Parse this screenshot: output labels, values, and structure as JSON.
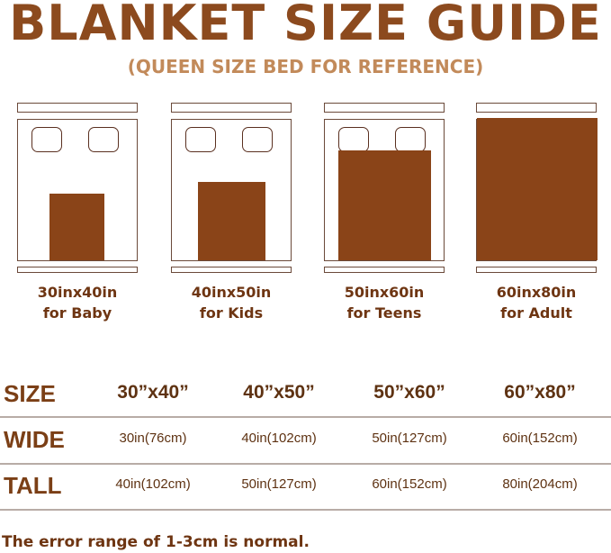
{
  "title": "BLANKET SIZE GUIDE",
  "subtitle": "(QUEEN SIZE BED FOR REFERENCE)",
  "colors": {
    "blanket": "#8a4418",
    "text": "#7b3f16",
    "subtitle": "#c28a5a"
  },
  "beds": [
    {
      "size": "30inx40in",
      "use": "for Baby"
    },
    {
      "size": "40inx50in",
      "use": "for Kids"
    },
    {
      "size": "50inx60in",
      "use": "for Teens"
    },
    {
      "size": "60inx80in",
      "use": "for Adult"
    }
  ],
  "table": {
    "rows": [
      {
        "header": "SIZE",
        "cells": [
          "30”x40”",
          "40”x50”",
          "50”x60”",
          "60”x80”"
        ]
      },
      {
        "header": "WIDE",
        "cells": [
          "30in(76cm)",
          "40in(102cm)",
          "50in(127cm)",
          "60in(152cm)"
        ]
      },
      {
        "header": "TALL",
        "cells": [
          "40in(102cm)",
          "50in(127cm)",
          "60in(152cm)",
          "80in(204cm)"
        ]
      }
    ]
  },
  "footer": "The error range of 1-3cm is normal."
}
